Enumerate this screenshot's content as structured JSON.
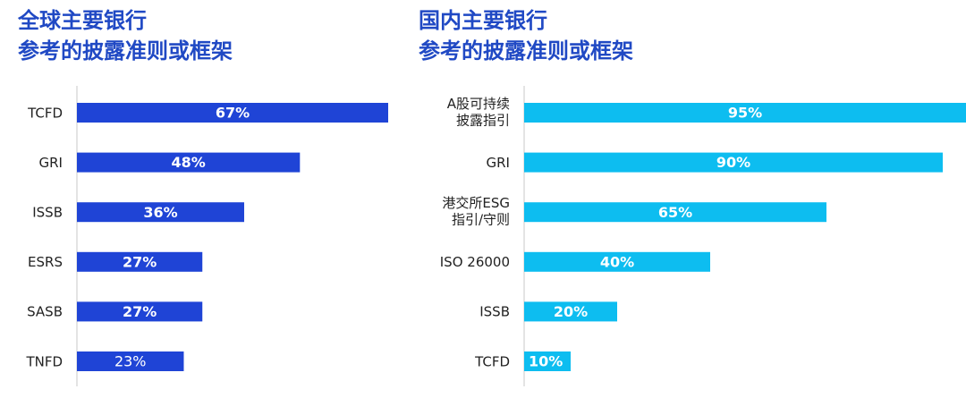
{
  "chart_data": [
    {
      "type": "bar",
      "orientation": "horizontal",
      "title": [
        "全球主要银行",
        "参考的披露准则或框架"
      ],
      "categories": [
        "TCFD",
        "GRI",
        "ISSB",
        "ESRS",
        "SASB",
        "TNFD"
      ],
      "values": [
        67,
        48,
        36,
        27,
        27,
        23
      ],
      "value_labels": [
        "67%",
        "48%",
        "36%",
        "27%",
        "27%",
        "23%"
      ],
      "unit": "%",
      "xlim": [
        0,
        67
      ],
      "color": "#1f44d6",
      "grid": false
    },
    {
      "type": "bar",
      "orientation": "horizontal",
      "title": [
        "国内主要银行",
        "参考的披露准则或框架"
      ],
      "categories": [
        "A股可持续\n披露指引",
        "GRI",
        "港交所ESG\n指引/守则",
        "ISO 26000",
        "ISSB",
        "TCFD"
      ],
      "values": [
        95,
        90,
        65,
        40,
        20,
        10
      ],
      "value_labels": [
        "95%",
        "90%",
        "65%",
        "40%",
        "20%",
        "10%"
      ],
      "unit": "%",
      "xlim": [
        0,
        95
      ],
      "color": "#0dbdf0",
      "grid": false
    }
  ]
}
